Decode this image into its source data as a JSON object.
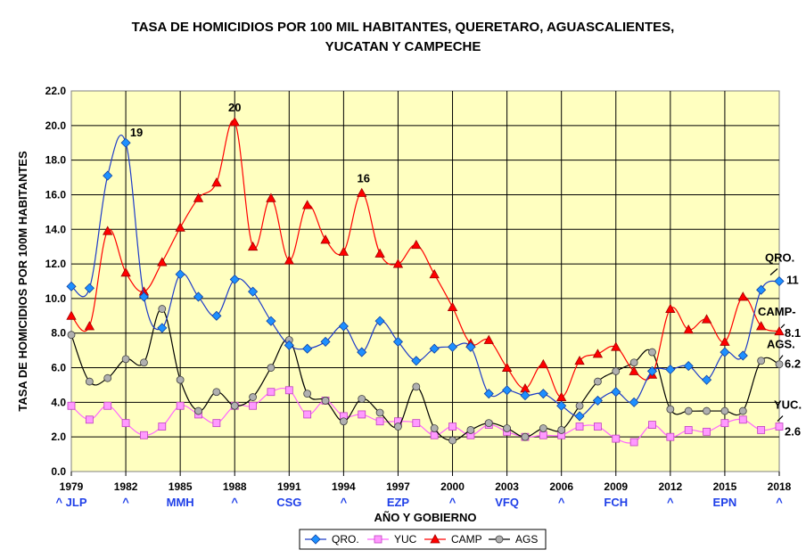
{
  "chart_title_line1": "TASA DE HOMICIDIOS POR 100 MIL HABITANTES, QUERETARO, AGUASCALIENTES,",
  "chart_title_line2": "YUCATAN Y CAMPECHE",
  "colors": {
    "plot_bg": "#ffffc0",
    "qro": "#1e90ff",
    "yuc": "#ff66ff",
    "camp": "#ff0000",
    "ags": "#a0a0a0",
    "gobierno_text": "#1f3fe8"
  },
  "chart_data": {
    "type": "line",
    "title": "TASA DE HOMICIDIOS POR 100 MIL HABITANTES, QUERETARO, AGUASCALIENTES, YUCATAN Y CAMPECHE",
    "xlabel": "AÑO Y GOBIERNO",
    "ylabel": "TASA DE HOMICIDIOS POR 100M HABITANTES",
    "ylim": [
      0,
      22
    ],
    "yticks": [
      "0.0",
      "2.0",
      "4.0",
      "6.0",
      "8.0",
      "10.0",
      "12.0",
      "14.0",
      "16.0",
      "18.0",
      "20.0",
      "22.0"
    ],
    "x": [
      1979,
      1980,
      1981,
      1982,
      1983,
      1984,
      1985,
      1986,
      1987,
      1988,
      1989,
      1990,
      1991,
      1992,
      1993,
      1994,
      1995,
      1996,
      1997,
      1998,
      1999,
      2000,
      2001,
      2002,
      2003,
      2004,
      2005,
      2006,
      2007,
      2008,
      2009,
      2010,
      2011,
      2012,
      2013,
      2014,
      2015,
      2016,
      2017,
      2018
    ],
    "xticks": [
      "1979",
      "1982",
      "1985",
      "1988",
      "1991",
      "1994",
      "1997",
      "2000",
      "2003",
      "2006",
      "2009",
      "2012",
      "2015",
      "2018"
    ],
    "gobierno_labels": [
      {
        "year": 1979,
        "text": "^ JLP"
      },
      {
        "year": 1982,
        "text": "^"
      },
      {
        "year": 1985,
        "text": "MMH"
      },
      {
        "year": 1988,
        "text": "^"
      },
      {
        "year": 1991,
        "text": "CSG"
      },
      {
        "year": 1994,
        "text": "^"
      },
      {
        "year": 1997,
        "text": "EZP"
      },
      {
        "year": 2000,
        "text": "^"
      },
      {
        "year": 2003,
        "text": "VFQ"
      },
      {
        "year": 2006,
        "text": "^"
      },
      {
        "year": 2009,
        "text": "FCH"
      },
      {
        "year": 2012,
        "text": "^"
      },
      {
        "year": 2015,
        "text": "EPN"
      },
      {
        "year": 2018,
        "text": "^"
      }
    ],
    "grid": true,
    "legend_position": "bottom",
    "series": [
      {
        "name": "QRO.",
        "marker": "diamond",
        "values": [
          10.7,
          10.6,
          17.1,
          19.0,
          10.1,
          8.3,
          11.4,
          10.1,
          9.0,
          11.1,
          10.4,
          8.7,
          7.3,
          7.1,
          7.5,
          8.4,
          6.9,
          8.7,
          7.5,
          6.4,
          7.1,
          7.2,
          7.2,
          4.5,
          4.7,
          4.4,
          4.5,
          3.8,
          3.2,
          4.1,
          4.6,
          4.0,
          5.8,
          5.9,
          6.1,
          5.3,
          6.9,
          6.7,
          10.5,
          11.0
        ]
      },
      {
        "name": "YUC",
        "marker": "square",
        "values": [
          3.8,
          3.0,
          3.8,
          2.8,
          2.1,
          2.6,
          3.8,
          3.3,
          2.8,
          3.8,
          3.8,
          4.6,
          4.7,
          3.3,
          4.1,
          3.2,
          3.3,
          2.9,
          2.9,
          2.8,
          2.1,
          2.6,
          2.1,
          2.7,
          2.3,
          2.0,
          2.1,
          2.1,
          2.6,
          2.6,
          1.9,
          1.7,
          2.7,
          2.0,
          2.4,
          2.3,
          2.8,
          3.0,
          2.4,
          2.6
        ]
      },
      {
        "name": "CAMP",
        "marker": "triangle",
        "values": [
          9.0,
          8.4,
          13.9,
          11.5,
          10.4,
          12.1,
          14.1,
          15.8,
          16.7,
          20.2,
          13.0,
          15.8,
          12.2,
          15.4,
          13.4,
          12.7,
          16.1,
          12.6,
          12.0,
          13.1,
          11.4,
          9.5,
          7.4,
          7.6,
          6.0,
          4.8,
          6.2,
          4.3,
          6.4,
          6.8,
          7.2,
          5.8,
          5.6,
          9.4,
          8.2,
          8.8,
          7.5,
          10.1,
          8.4,
          8.1
        ]
      },
      {
        "name": "AGS",
        "marker": "circle",
        "values": [
          7.9,
          5.2,
          5.4,
          6.5,
          6.3,
          9.4,
          5.3,
          3.5,
          4.6,
          3.8,
          4.3,
          6.0,
          7.6,
          4.5,
          4.1,
          2.9,
          4.2,
          3.4,
          2.6,
          4.9,
          2.5,
          1.8,
          2.4,
          2.8,
          2.5,
          2.0,
          2.5,
          2.4,
          3.8,
          5.2,
          5.8,
          6.3,
          6.9,
          3.6,
          3.5,
          3.5,
          3.5,
          3.5,
          6.4,
          6.2
        ]
      }
    ],
    "annotations": [
      {
        "text": "19",
        "year": 1982,
        "value": 19.0
      },
      {
        "text": "20",
        "year": 1988,
        "value": 20.2
      },
      {
        "text": "16",
        "year": 1995,
        "value": 16.1
      },
      {
        "text": "QRO.",
        "year": 2018,
        "value": 11.0
      },
      {
        "text": "11",
        "year": 2018,
        "value": 11.0
      },
      {
        "text": "CAMP-",
        "year": 2018,
        "value": 8.1
      },
      {
        "text": "8.1",
        "year": 2018,
        "value": 8.1
      },
      {
        "text": "AGS.",
        "year": 2018,
        "value": 6.2
      },
      {
        "text": "6.2",
        "year": 2018,
        "value": 6.2
      },
      {
        "text": "YUC.",
        "year": 2018,
        "value": 2.6
      },
      {
        "text": "2.6",
        "year": 2018,
        "value": 2.6
      }
    ]
  }
}
